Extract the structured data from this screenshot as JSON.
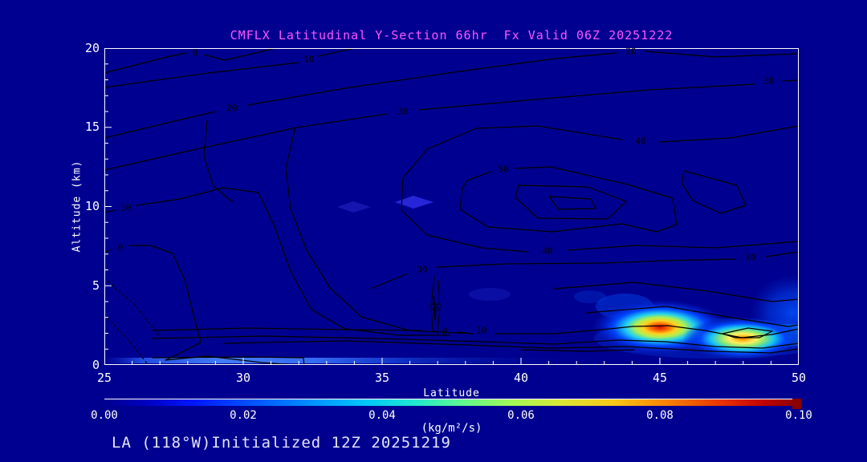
{
  "window": {
    "bg": "#000090"
  },
  "title": {
    "text": "CMFLX Latitudinal Y-Section 66hr  Fx Valid 06Z 20251222",
    "color": "#ff55ff"
  },
  "y_axis": {
    "label": "Altitude (km)",
    "ticks": [
      "20",
      "15",
      "10",
      "5",
      "0"
    ]
  },
  "x_axis": {
    "label": "Latitude",
    "ticks": [
      "25",
      "30",
      "35",
      "40",
      "45",
      "50"
    ]
  },
  "colorbar": {
    "tick_labels": [
      "0.00",
      "0.02",
      "0.04",
      "0.06",
      "0.08",
      "0.10"
    ],
    "units": "(kg/m²/s)",
    "palette": [
      "#000090",
      "#0018ff",
      "#0090ff",
      "#00c8f8",
      "#60f890",
      "#d8e838",
      "#f8c818",
      "#f88000",
      "#e83000",
      "#900000"
    ]
  },
  "footer": {
    "text": "LA (118°W)Initialized 12Z 20251219",
    "color": "#e4e4fa"
  },
  "contour_labels": [
    {
      "text": "0"
    },
    {
      "text": "10"
    },
    {
      "text": "20"
    },
    {
      "text": "30"
    },
    {
      "text": "20"
    },
    {
      "text": "30"
    },
    {
      "text": "40"
    },
    {
      "text": "50"
    },
    {
      "text": "40"
    },
    {
      "text": "30"
    },
    {
      "text": "10"
    },
    {
      "text": "0"
    },
    {
      "text": "30"
    },
    {
      "text": "30"
    },
    {
      "text": "0"
    },
    {
      "text": "10"
    }
  ],
  "chart_data": {
    "type": "heatmap",
    "title": "CMFLX Latitudinal Y-Section 66hr  Fx Valid 06Z 20251222",
    "variable": "CMFLX",
    "forecast_hour": "66hr",
    "valid": "06Z 20251222",
    "initialized": "12Z 20251219",
    "slice_location": "LA (118°W)",
    "xlabel": "Latitude",
    "ylabel": "Altitude (km)",
    "xlim": [
      25,
      50
    ],
    "ylim": [
      0,
      20
    ],
    "shading_units": "(kg/m²/s)",
    "shading_range": [
      0.0,
      0.1
    ],
    "shading_ticks": [
      0.0,
      0.02,
      0.04,
      0.06,
      0.08,
      0.1
    ],
    "palette_style": "jet (dark blue to dark red)",
    "contour_levels_labeled": [
      0,
      10,
      20,
      30,
      40,
      50
    ],
    "contour_features": [
      {
        "feature": "closed maximum aloft with nested rings",
        "lat_range": [
          40,
          46
        ],
        "alt_km_range": [
          9,
          13
        ],
        "peak_label": 50
      },
      {
        "feature": "values decrease toward upper-left; 0-contour near top-left corner",
        "lat_range": [
          25,
          31
        ],
        "alt_km_range": [
          15,
          20
        ]
      },
      {
        "feature": "dotted (negative) contours in lower-left corner",
        "lat_range": [
          25,
          27
        ],
        "alt_km_range": [
          0,
          6
        ]
      },
      {
        "feature": "tight horizontal contour bundle near surface",
        "lat_range": [
          27,
          50
        ],
        "alt_km_range": [
          1,
          2.5
        ]
      },
      {
        "feature": "narrow vertical contour spike",
        "lat": 37,
        "alt_km_range": [
          1.5,
          5.5
        ]
      }
    ],
    "shaded_maxima": [
      {
        "lat": 45.0,
        "alt_km": 1.7,
        "value_approx": 0.09,
        "core_color": "red"
      },
      {
        "lat": 48.0,
        "alt_km": 1.2,
        "value_approx": 0.075,
        "core_color": "orange"
      },
      {
        "lat_range": [
          49,
          50
        ],
        "alt_km_range": [
          0,
          3.5
        ],
        "value_approx": 0.04
      },
      {
        "lat_range": [
          25,
          37
        ],
        "alt_km_range": [
          0,
          0.4
        ],
        "value_approx": 0.02,
        "desc": "shallow near-surface band"
      }
    ]
  }
}
